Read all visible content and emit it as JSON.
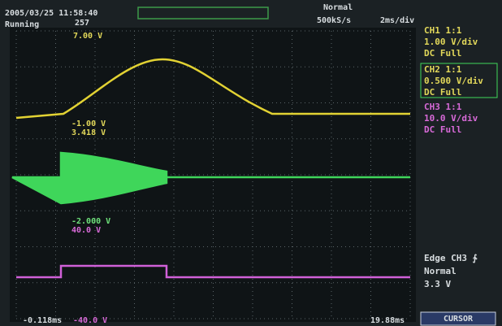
{
  "header": {
    "datetime": "2005/03/25 11:58:40",
    "status": "Running",
    "count": "257",
    "mode": "Normal",
    "sample_rate": "500kS/s",
    "timebase": "2ms/div"
  },
  "channels": [
    {
      "name": "CH1 1:1",
      "scale": "1.00 V/div",
      "coupling": "DC  Full"
    },
    {
      "name": "CH2 1:1",
      "scale": "0.500 V/div",
      "coupling": "DC  Full"
    },
    {
      "name": "CH3 1:1",
      "scale": "10.0 V/div",
      "coupling": "DC  Full"
    }
  ],
  "readouts": {
    "ch1_top": "7.00 V",
    "ch1_a": "-1.00 V",
    "ch1_b": "3.418 V",
    "ch2_a": "-2.000 V",
    "ch2_b": "40.0 V",
    "time_left": "-0.118ms",
    "ch3_bottom": "-40.0 V",
    "time_right": "19.88ms"
  },
  "trigger": {
    "label": "Edge CH3 ∱",
    "mode": "Normal",
    "level": "3.3 V"
  },
  "button": "CURSOR"
}
